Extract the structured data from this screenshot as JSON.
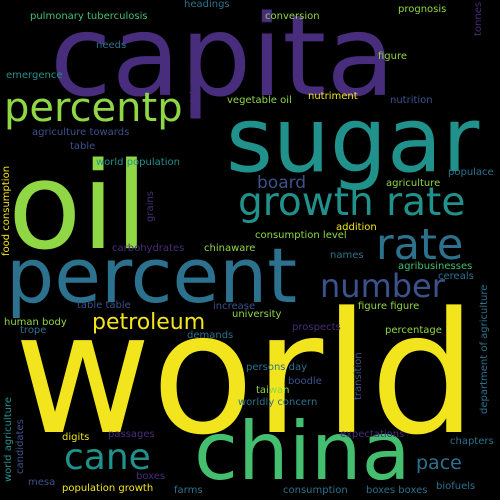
{
  "colors": {
    "background": "#000000",
    "yellow": "#f2e51d",
    "lime": "#8fd744",
    "green": "#44bf70",
    "teal": "#21918c",
    "blue": "#2c728e",
    "indigo": "#3b528b",
    "purple": "#472d7b",
    "violet": "#440154"
  },
  "words": {
    "capita": "capita",
    "sugar": "sugar",
    "oil": "oil",
    "world": "world",
    "percent": "percent",
    "china": "china",
    "percentp": "percentp",
    "growth_rate": "growth rate",
    "rate": "rate",
    "number": "number",
    "petroleum": "petroleum",
    "cane": "cane",
    "pace": "pace",
    "board": "board",
    "pulmonary_tuberculosis": "pulmonary tuberculosis",
    "headings": "headings",
    "conversion": "conversion",
    "prognosis": "prognosis",
    "tonnes": "tonnes",
    "needs": "needs",
    "figure_top": "figure",
    "emergence": "emergence",
    "metric_ton": "metric ton",
    "nutriment": "nutriment",
    "vegetable_oil": "vegetable oil",
    "nutrition": "nutrition",
    "agriculture_towards": "agriculture towards",
    "table": "table",
    "world_population": "world population",
    "populace": "populace",
    "agriculture": "agriculture",
    "food_consumption": "food consumption",
    "grains": "grains",
    "addition": "addition",
    "consumption_level": "consumption level",
    "carbohydrates": "carbohydrates",
    "chinaware": "chinaware",
    "names": "names",
    "agribusinesses": "agribusinesses",
    "cereals": "cereals",
    "increase": "increase",
    "table_table": "table table",
    "figure_figure": "figure figure",
    "university": "university",
    "human_body": "human body",
    "trope": "trope",
    "demands": "demands",
    "prospects": "prospects",
    "percentage": "percentage",
    "department_of_agriculture": "department of agriculture",
    "persons_day": "persons day",
    "taiwan": "taiwan",
    "boodle": "boodle",
    "transition": "transition",
    "worldly_concern": "worldly concern",
    "world_agriculture": "world agriculture",
    "candidates": "candidates",
    "digits": "digits",
    "passages": "passages",
    "expectations": "expectations",
    "chapters": "chapters",
    "boxes": "boxes",
    "mesa": "mesa",
    "population_growth": "population growth",
    "farms": "farms",
    "consumption": "consumption",
    "boxes_boxes": "boxes boxes",
    "biofuels": "biofuels"
  }
}
